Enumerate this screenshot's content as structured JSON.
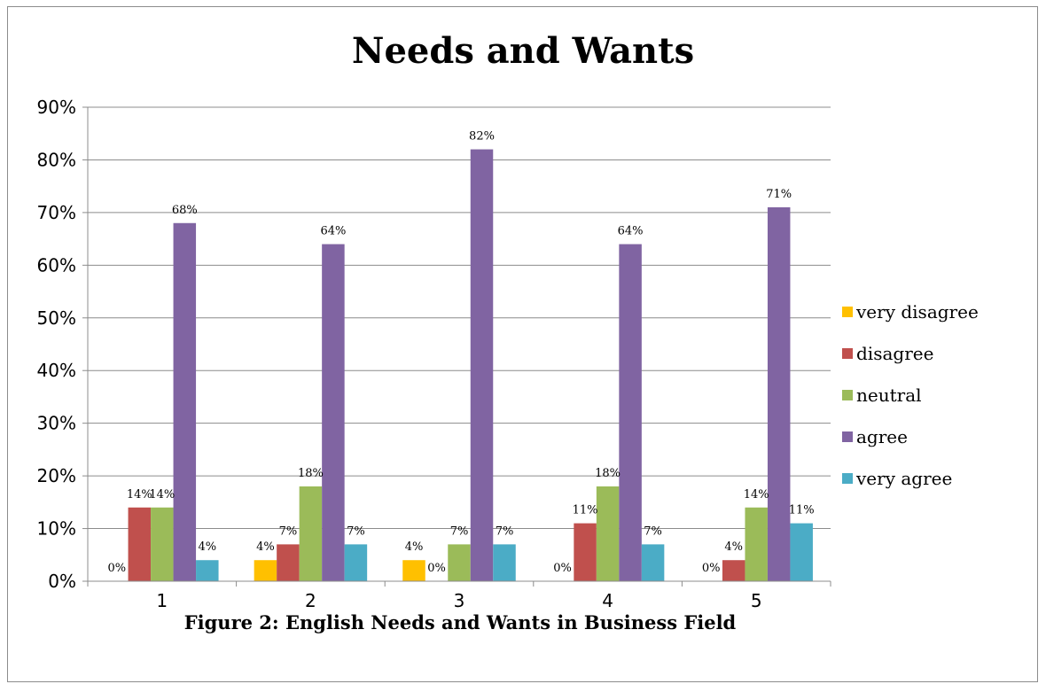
{
  "chart_data": {
    "type": "bar",
    "title": "Needs and Wants",
    "caption": "Figure 2: English Needs and Wants in Business Field",
    "categories": [
      "1",
      "2",
      "3",
      "4",
      "5"
    ],
    "series": [
      {
        "name": "very disagree",
        "color": "#FFC000",
        "values": [
          0,
          4,
          4,
          0,
          0
        ],
        "labels": [
          "0%",
          "4%",
          "4%",
          "0%",
          "0%"
        ]
      },
      {
        "name": "disagree",
        "color": "#C0504D",
        "values": [
          14,
          7,
          0,
          11,
          4
        ],
        "labels": [
          "14%",
          "7%",
          "0%",
          "11%",
          "4%"
        ]
      },
      {
        "name": "neutral",
        "color": "#9BBB59",
        "values": [
          14,
          18,
          7,
          18,
          14
        ],
        "labels": [
          "14%",
          "18%",
          "7%",
          "18%",
          "14%"
        ]
      },
      {
        "name": "agree",
        "color": "#8064A2",
        "values": [
          68,
          64,
          82,
          64,
          71
        ],
        "labels": [
          "68%",
          "64%",
          "82%",
          "64%",
          "71%"
        ]
      },
      {
        "name": "very agree",
        "color": "#4BACC6",
        "values": [
          4,
          7,
          7,
          7,
          11
        ],
        "labels": [
          "4%",
          "7%",
          "7%",
          "7%",
          "11%"
        ]
      }
    ],
    "ylim": [
      0,
      90
    ],
    "yticks": [
      "0%",
      "10%",
      "20%",
      "30%",
      "40%",
      "50%",
      "60%",
      "70%",
      "80%",
      "90%"
    ],
    "xlabel": "",
    "ylabel": "",
    "grid": true,
    "legend_position": "right"
  }
}
